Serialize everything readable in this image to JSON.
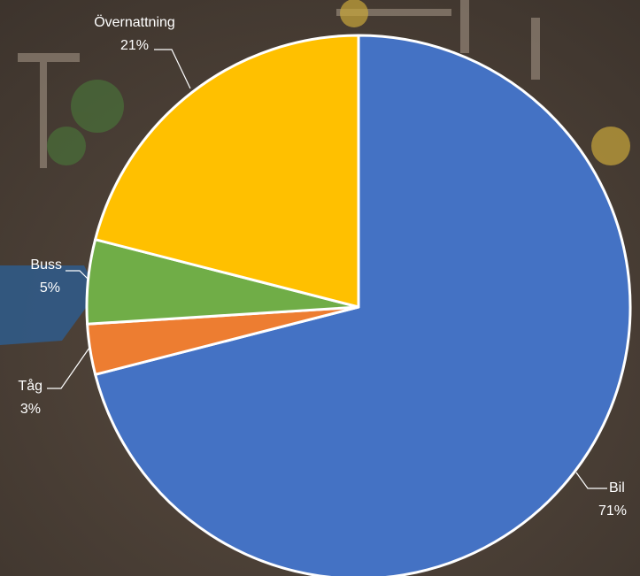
{
  "chart_data": {
    "type": "pie",
    "start_angle_deg": 0,
    "direction": "clockwise",
    "slices": [
      {
        "name": "Bil",
        "value": 71,
        "label": "71%",
        "color": "#4472C4"
      },
      {
        "name": "Tåg",
        "value": 3,
        "label": "3%",
        "color": "#ED7D31"
      },
      {
        "name": "Buss",
        "value": 5,
        "label": "5%",
        "color": "#70AD47"
      },
      {
        "name": "Övernattning",
        "value": 21,
        "label": "21%",
        "color": "#FFC000"
      }
    ]
  }
}
